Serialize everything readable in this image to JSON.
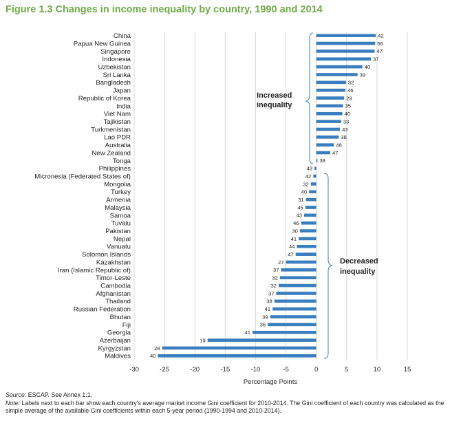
{
  "figure": {
    "title": "Figure 1.3 Changes in income inequality by country, 1990 and 2014"
  },
  "annotations": {
    "increased": [
      "Increased",
      "inequality"
    ],
    "decreased": [
      "Decreased",
      "inequality"
    ]
  },
  "footer": {
    "source_label": "Source:",
    "source_text": "ESCAP. See Annex 1.1.",
    "note_label": "Note:",
    "note_text": "Labels next to each bar show each country's average market income Gini coefficient for 2010-2014. The Gini coefficient of each country was calculated as the simple average of the available Gini coefficients within each 5-year period (1990-1994 and 2010-2014)."
  },
  "colors": {
    "bar": "#3a7ebf",
    "title": "#6fac46",
    "grid": "#d9d9d9"
  },
  "chart_data": {
    "type": "bar",
    "orientation": "horizontal",
    "title": "",
    "xlabel": "Percentage Points",
    "ylabel": "",
    "xlim": [
      -30,
      15
    ],
    "xticks": [
      -30,
      -25,
      -20,
      -15,
      -10,
      -5,
      0,
      5,
      10,
      15
    ],
    "grid": true,
    "categories": [
      "China",
      "Papua New Guinea",
      "Singapore",
      "Indonesia",
      "Uzbekistan",
      "Sri Lanka",
      "Bangladesh",
      "Japan",
      "Republic of Korea",
      "India",
      "Viet Nam",
      "Tajikistan",
      "Turkmenistan",
      "Lao PDR",
      "Australia",
      "New Zealand",
      "Tonga",
      "Philippines",
      "Micronesia (Federated States of)",
      "Mongolia",
      "Turkey",
      "Armenia",
      "Malaysia",
      "Samoa",
      "Tuvalu",
      "Pakistan",
      "Nepal",
      "Vanuatu",
      "Solomon Islands",
      "Kazakhstan",
      "Iran (Islamic Republic of)",
      "Timor-Leste",
      "Cambodia",
      "Afghanistan",
      "Thailand",
      "Russian Federation",
      "Bhutan",
      "Fiji",
      "Georgia",
      "Azerbaijan",
      "Kyrgyzstan",
      "Maldives"
    ],
    "values": [
      9.8,
      9.7,
      9.6,
      9.0,
      7.6,
      6.8,
      4.9,
      4.8,
      4.6,
      4.4,
      4.3,
      4.1,
      3.9,
      3.7,
      2.9,
      2.3,
      0.2,
      -0.3,
      -0.5,
      -0.9,
      -1.2,
      -1.7,
      -1.8,
      -2.0,
      -2.5,
      -2.7,
      -2.9,
      -3.2,
      -3.4,
      -5.0,
      -5.8,
      -6.0,
      -6.2,
      -6.6,
      -6.9,
      -7.2,
      -7.6,
      -8.0,
      -10.5,
      -17.9,
      -25.4,
      -26.1
    ],
    "data_labels": [
      "42",
      "56",
      "47",
      "37",
      "40",
      "39",
      "32",
      "46",
      "29",
      "35",
      "40",
      "33",
      "43",
      "38",
      "48",
      "47",
      "38",
      "43",
      "42",
      "32",
      "40",
      "31",
      "45",
      "43",
      "46",
      "30",
      "41",
      "44",
      "47",
      "27",
      "37",
      "32",
      "32",
      "37",
      "38",
      "41",
      "39",
      "36",
      "41",
      "19",
      "28",
      "40"
    ]
  }
}
